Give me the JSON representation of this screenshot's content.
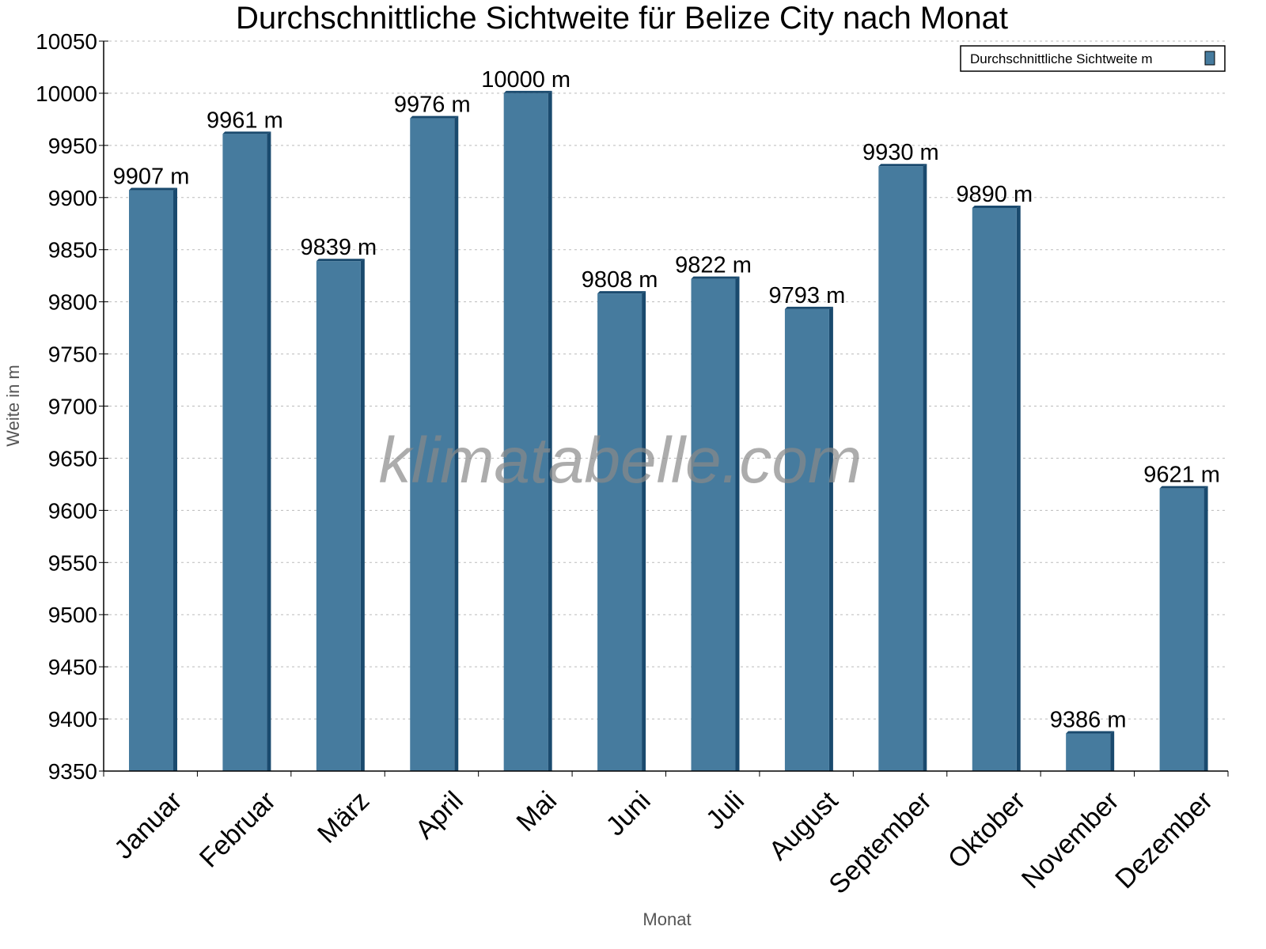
{
  "chart_data": {
    "type": "bar",
    "title": "Durchschnittliche Sichtweite für Belize City nach Monat",
    "xlabel": "Monat",
    "ylabel": "Weite in m",
    "categories": [
      "Januar",
      "Februar",
      "März",
      "April",
      "Mai",
      "Juni",
      "Juli",
      "August",
      "September",
      "Oktober",
      "November",
      "Dezember"
    ],
    "series": [
      {
        "name": "Durchschnittliche Sichtweite m",
        "values": [
          9907,
          9961,
          9839,
          9976,
          10000,
          9808,
          9822,
          9793,
          9930,
          9890,
          9386,
          9621
        ],
        "color": "#467b9e",
        "edge_color": "#1a4a6e"
      }
    ],
    "data_labels": [
      "9907 m",
      "9961 m",
      "9839 m",
      "9976 m",
      "10000 m",
      "9808 m",
      "9822 m",
      "9793 m",
      "9930 m",
      "9890 m",
      "9386 m",
      "9621 m"
    ],
    "ylim": [
      9350,
      10050
    ],
    "yticks": [
      9350,
      9400,
      9450,
      9500,
      9550,
      9600,
      9650,
      9700,
      9750,
      9800,
      9850,
      9900,
      9950,
      10000,
      10050
    ],
    "grid": true,
    "legend_position": "top-right",
    "watermark": "klimatabelle.com"
  }
}
